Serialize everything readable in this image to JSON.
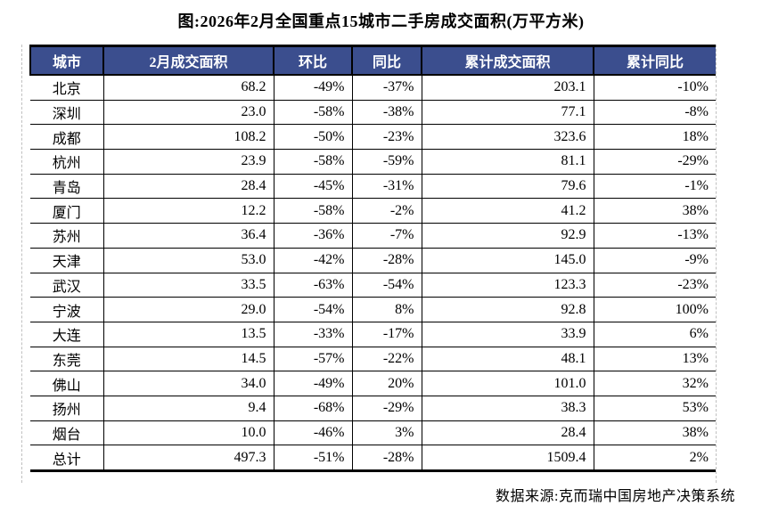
{
  "title": "图:2026年2月全国重点15城市二手房成交面积(万平方米)",
  "colors": {
    "header_bg": "#3B4E8E",
    "header_text": "#FFFFFF",
    "border": "#000000",
    "dashed_guide": "#C0C0C0"
  },
  "chart_data": {
    "type": "table",
    "title": "图:2026年2月全国重点15城市二手房成交面积(万平方米)",
    "columns": [
      "城市",
      "2月成交面积",
      "环比",
      "同比",
      "累计成交面积",
      "累计同比"
    ],
    "rows": [
      [
        "北京",
        "68.2",
        "-49%",
        "-37%",
        "203.1",
        "-10%"
      ],
      [
        "深圳",
        "23.0",
        "-58%",
        "-38%",
        "77.1",
        "-8%"
      ],
      [
        "成都",
        "108.2",
        "-50%",
        "-23%",
        "323.6",
        "18%"
      ],
      [
        "杭州",
        "23.9",
        "-58%",
        "-59%",
        "81.1",
        "-29%"
      ],
      [
        "青岛",
        "28.4",
        "-45%",
        "-31%",
        "79.6",
        "-1%"
      ],
      [
        "厦门",
        "12.2",
        "-58%",
        "-2%",
        "41.2",
        "38%"
      ],
      [
        "苏州",
        "36.4",
        "-36%",
        "-7%",
        "92.9",
        "-13%"
      ],
      [
        "天津",
        "53.0",
        "-42%",
        "-28%",
        "145.0",
        "-9%"
      ],
      [
        "武汉",
        "33.5",
        "-63%",
        "-54%",
        "123.3",
        "-23%"
      ],
      [
        "宁波",
        "29.0",
        "-54%",
        "8%",
        "92.8",
        "100%"
      ],
      [
        "大连",
        "13.5",
        "-33%",
        "-17%",
        "33.9",
        "6%"
      ],
      [
        "东莞",
        "14.5",
        "-57%",
        "-22%",
        "48.1",
        "13%"
      ],
      [
        "佛山",
        "34.0",
        "-49%",
        "20%",
        "101.0",
        "32%"
      ],
      [
        "扬州",
        "9.4",
        "-68%",
        "-29%",
        "38.3",
        "53%"
      ],
      [
        "烟台",
        "10.0",
        "-46%",
        "3%",
        "28.4",
        "38%"
      ],
      [
        "总计",
        "497.3",
        "-51%",
        "-28%",
        "1509.4",
        "2%"
      ]
    ]
  },
  "footer": {
    "source": "数据来源:克而瑞中国房地产决策系统"
  }
}
